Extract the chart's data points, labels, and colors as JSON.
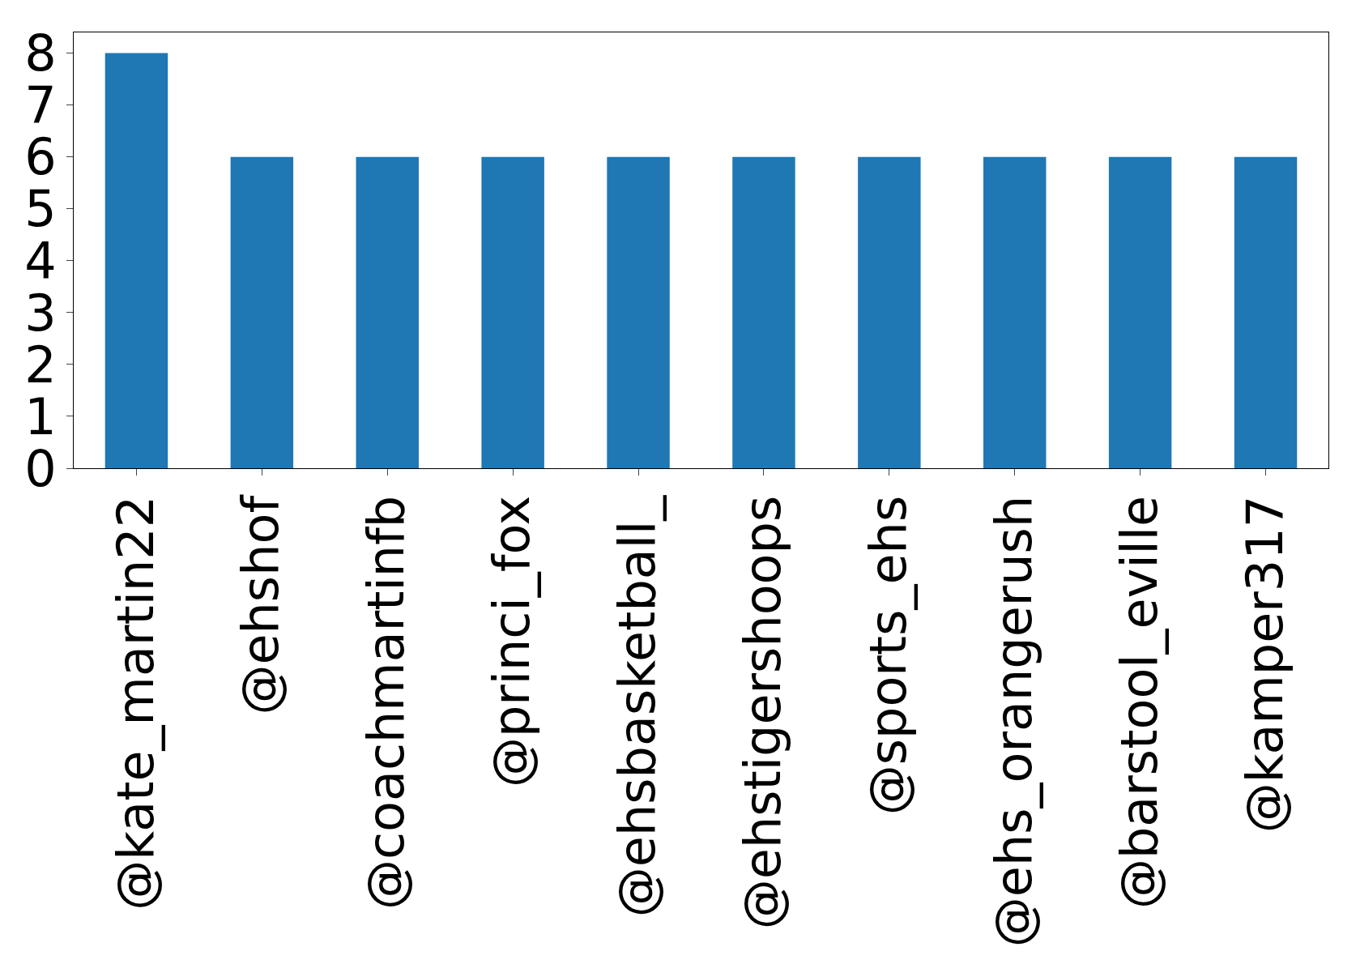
{
  "chart_data": {
    "type": "bar",
    "categories": [
      "@kate_martin22",
      "@ehshof",
      "@coachmartinfb",
      "@princi_fox",
      "@ehsbasketball_",
      "@ehstigershoops",
      "@sports_ehs",
      "@ehs_orangerush",
      "@barstool_eville",
      "@kamper317"
    ],
    "values": [
      8,
      6,
      6,
      6,
      6,
      6,
      6,
      6,
      6,
      6
    ],
    "color": "#1f77b4",
    "ylim": [
      0,
      8.4
    ],
    "yticks": [
      0,
      1,
      2,
      3,
      4,
      5,
      6,
      7,
      8
    ]
  }
}
